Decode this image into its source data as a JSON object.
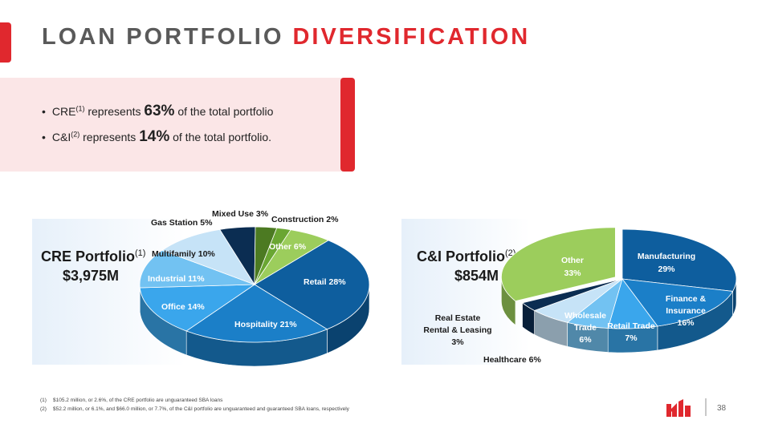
{
  "header": {
    "title_part1": "LOAN PORTFOLIO",
    "title_part2": "DIVERSIFICATION"
  },
  "summary": {
    "bullet1": {
      "pre": "CRE",
      "sup": "(1)",
      "mid": " represents ",
      "value": "63%",
      "post": " of the total portfolio"
    },
    "bullet2": {
      "pre": "C&I",
      "sup": "(2)",
      "mid": " represents ",
      "value": "14%",
      "post": " of the total portfolio."
    }
  },
  "cre_panel": {
    "title": "CRE Portfolio",
    "title_sup": "(1)",
    "amount": "$3,975M"
  },
  "ci_panel": {
    "title": "C&I Portfolio",
    "title_sup": "(2)",
    "amount": "$854M"
  },
  "chart_data": [
    {
      "type": "pie",
      "title": "CRE Portfolio",
      "slices": [
        {
          "label": "Retail 28%",
          "category": "Retail",
          "value": 28,
          "color": "#0e5e9e"
        },
        {
          "label": "Hospitality 21%",
          "category": "Hospitality",
          "value": 21,
          "color": "#1b7fc8"
        },
        {
          "label": "Office 14%",
          "category": "Office",
          "value": 14,
          "color": "#3aa6ec"
        },
        {
          "label": "Industrial 11%",
          "category": "Industrial",
          "value": 11,
          "color": "#72c2f2"
        },
        {
          "label": "Multifamily 10%",
          "category": "Multifamily",
          "value": 10,
          "color": "#c6e3f7"
        },
        {
          "label": "Gas Station 5%",
          "category": "Gas Station",
          "value": 5,
          "color": "#0b2d52"
        },
        {
          "label": "Mixed Use 3%",
          "category": "Mixed Use",
          "value": 3,
          "color": "#4c7a22"
        },
        {
          "label": "Construction 2%",
          "category": "Construction",
          "value": 2,
          "color": "#6aa632"
        },
        {
          "label": "Other 6%",
          "category": "Other",
          "value": 6,
          "color": "#9ccd5c"
        }
      ]
    },
    {
      "type": "pie",
      "title": "C&I Portfolio",
      "slices": [
        {
          "label": "Manufacturing 29%",
          "category": "Manufacturing",
          "value": 29,
          "color": "#0e5e9e"
        },
        {
          "label": "Finance & Insurance 16%",
          "category": "Finance & Insurance",
          "value": 16,
          "color": "#1b7fc8"
        },
        {
          "label": "Retail Trade 7%",
          "category": "Retail Trade",
          "value": 7,
          "color": "#3aa6ec"
        },
        {
          "label": "Wholesale Trade 6%",
          "category": "Wholesale Trade",
          "value": 6,
          "color": "#72c2f2"
        },
        {
          "label": "Healthcare 6%",
          "category": "Healthcare",
          "value": 6,
          "color": "#c6e3f7"
        },
        {
          "label": "Real Estate Rental & Leasing 3%",
          "category": "Real Estate Rental & Leasing",
          "value": 3,
          "color": "#0b2d52"
        },
        {
          "label": "Other 33%",
          "category": "Other",
          "value": 33,
          "color": "#9ccd5c"
        }
      ]
    }
  ],
  "chart_labels": {
    "cre": {
      "retail": "Retail 28%",
      "hospitality": "Hospitality 21%",
      "office": "Office 14%",
      "industrial": "Industrial 11%",
      "multifamily": "Multifamily 10%",
      "gas_station": "Gas Station 5%",
      "mixed_use": "Mixed Use 3%",
      "construction": "Construction 2%",
      "other": "Other 6%"
    },
    "ci": {
      "manufacturing_1": "Manufacturing",
      "manufacturing_2": "29%",
      "finance_1": "Finance &",
      "finance_2": "Insurance",
      "finance_3": "16%",
      "retail_trade_1": "Retail Trade",
      "retail_trade_2": "7%",
      "wholesale_1": "Wholesale",
      "wholesale_2": "Trade",
      "wholesale_3": "6%",
      "healthcare": "Healthcare 6%",
      "real_estate_1": "Real Estate",
      "real_estate_2": "Rental & Leasing",
      "real_estate_3": "3%",
      "other_1": "Other",
      "other_2": "33%"
    }
  },
  "footnotes": {
    "f1_mark": "(1)",
    "f1_text": "$105.2 million, or 2.6%, of the CRE portfolio are unguaranteed SBA loans",
    "f2_mark": "(2)",
    "f2_text": "$52.2 million, or 6.1%, and $66.0 million, or 7.7%, of the C&I portfolio are unguaranteed and guaranteed SBA loans, respectively"
  },
  "footer": {
    "page_number": "38",
    "logo_icon": "company-logo-icon",
    "brand_color": "#e0282e"
  }
}
